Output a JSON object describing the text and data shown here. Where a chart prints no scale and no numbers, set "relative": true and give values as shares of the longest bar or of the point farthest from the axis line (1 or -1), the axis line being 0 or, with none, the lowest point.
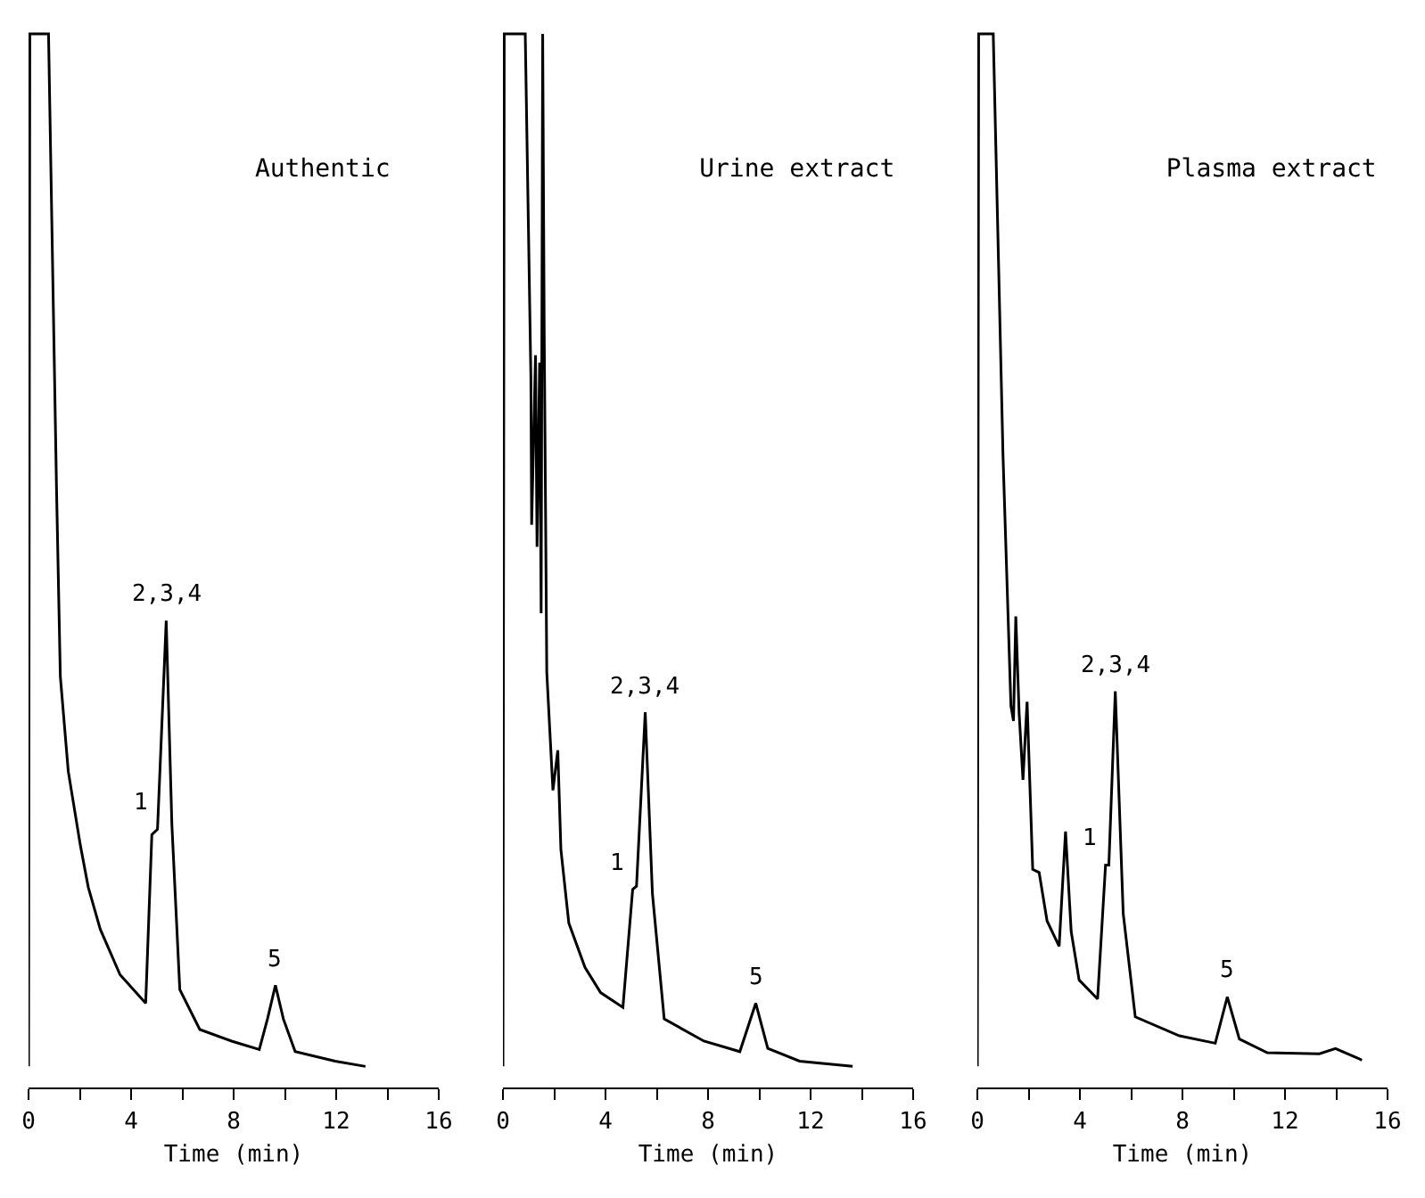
{
  "chart_data": [
    {
      "type": "line",
      "title": "Authentic",
      "xlabel": "Time (min)",
      "relative": true,
      "xlim": [
        0,
        16
      ],
      "xticks": [
        0,
        {
          "value": 2,
          "label": null
        },
        4,
        {
          "value": 6,
          "label": null
        },
        8,
        {
          "value": 10,
          "label": null
        },
        12,
        {
          "value": 14,
          "label": null
        },
        16
      ],
      "series": [
        {
          "color": "#000000",
          "x": [
            0,
            0.05,
            0.78,
            1.09,
            1.24,
            1.55,
            2.02,
            2.33,
            2.8,
            3.57,
            4.57,
            4.81,
            5.03,
            5.37,
            5.59,
            5.9,
            6.68,
            7.92,
            9.0,
            9.32,
            9.63,
            9.94,
            10.4,
            11.96,
            13.14
          ],
          "values": [
            0.02,
            1,
            1,
            0.57,
            0.39,
            0.3,
            0.23,
            0.19,
            0.15,
            0.107,
            0.08,
            0.24,
            0.245,
            0.443,
            0.25,
            0.093,
            0.055,
            0.044,
            0.036,
            0.065,
            0.097,
            0.065,
            0.034,
            0.025,
            0.02
          ]
        }
      ],
      "annotations": [
        {
          "text": "1",
          "x": 5.03,
          "y": 0.245
        },
        {
          "text": "2,3,4",
          "x": 5.37,
          "y": 0.443
        },
        {
          "text": "5",
          "x": 9.63,
          "y": 0.097
        }
      ]
    },
    {
      "type": "line",
      "title": "Urine extract",
      "xlabel": "Time (min)",
      "relative": true,
      "xlim": [
        0,
        16
      ],
      "xticks": [
        0,
        {
          "value": 2,
          "label": null
        },
        4,
        {
          "value": 6,
          "label": null
        },
        8,
        {
          "value": 10,
          "label": null
        },
        12,
        {
          "value": 14,
          "label": null
        },
        16
      ],
      "series": [
        {
          "color": "#000000",
          "x": [
            0,
            0.05,
            0.87,
            1.09,
            1.12,
            1.27,
            1.33,
            1.43,
            1.49,
            1.55,
            1.61,
            1.71,
            1.95,
            2.14,
            2.26,
            2.57,
            3.2,
            3.81,
            4.68,
            5.06,
            5.21,
            5.55,
            5.83,
            6.29,
            7.84,
            9.24,
            9.86,
            10.33,
            11.57,
            13.64
          ],
          "values": [
            0.02,
            1,
            1,
            0.674,
            0.534,
            0.695,
            0.513,
            0.688,
            0.45,
            1,
            0.716,
            0.394,
            0.282,
            0.32,
            0.226,
            0.156,
            0.114,
            0.09,
            0.076,
            0.188,
            0.191,
            0.356,
            0.184,
            0.065,
            0.044,
            0.034,
            0.08,
            0.037,
            0.025,
            0.02
          ]
        }
      ],
      "annotations": [
        {
          "text": "1",
          "x": 5.06,
          "y": 0.188
        },
        {
          "text": "2,3,4",
          "x": 5.55,
          "y": 0.356
        },
        {
          "text": "5",
          "x": 9.86,
          "y": 0.08
        }
      ]
    },
    {
      "type": "line",
      "title": "Plasma extract",
      "xlabel": "Time (min)",
      "relative": true,
      "xlim": [
        0,
        16
      ],
      "xticks": [
        0,
        {
          "value": 2,
          "label": null
        },
        4,
        {
          "value": 6,
          "label": null
        },
        8,
        {
          "value": 10,
          "label": null
        },
        12,
        {
          "value": 14,
          "label": null
        },
        16
      ],
      "series": [
        {
          "color": "#000000",
          "x": [
            0,
            0.05,
            0.62,
            1.0,
            1.31,
            1.41,
            1.5,
            1.63,
            1.78,
            1.94,
            2.16,
            2.41,
            2.72,
            3.19,
            3.44,
            3.66,
            3.97,
            4.69,
            5.0,
            5.13,
            5.38,
            5.69,
            6.16,
            7.88,
            9.28,
            9.75,
            10.22,
            11.31,
            13.34,
            13.97,
            15.0
          ],
          "values": [
            0.02,
            1,
            1,
            0.6,
            0.362,
            0.348,
            0.447,
            0.355,
            0.292,
            0.366,
            0.207,
            0.204,
            0.158,
            0.134,
            0.243,
            0.148,
            0.102,
            0.084,
            0.211,
            0.211,
            0.376,
            0.165,
            0.067,
            0.049,
            0.042,
            0.086,
            0.046,
            0.033,
            0.032,
            0.037,
            0.026
          ]
        }
      ],
      "annotations": [
        {
          "text": "1",
          "x": 5.0,
          "y": 0.211
        },
        {
          "text": "2,3,4",
          "x": 5.38,
          "y": 0.376
        },
        {
          "text": "5",
          "x": 9.75,
          "y": 0.086
        }
      ]
    }
  ]
}
